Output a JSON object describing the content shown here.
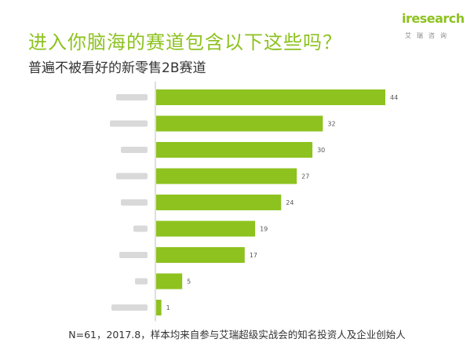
{
  "header": {
    "title": "进入你脑海的赛道包含以下这些吗？",
    "subtitle": "普遍不被看好的新零售2B赛道"
  },
  "logo": {
    "word": "iresearch",
    "sub": "艾瑞咨询",
    "accent_color": "#8dc21f"
  },
  "chart_data": {
    "type": "bar",
    "orientation": "horizontal",
    "categories": [
      "",
      "",
      "",
      "",
      "",
      "",
      "",
      "",
      ""
    ],
    "values": [
      44,
      32,
      30,
      27,
      24,
      19,
      17,
      5,
      1
    ],
    "data_labels": [
      "44",
      "32",
      "30",
      "27",
      "24",
      "19",
      "17",
      "5",
      "1"
    ],
    "title": "",
    "xlabel": "",
    "ylabel": "",
    "xlim": [
      0,
      44
    ],
    "grid": false,
    "legend": "none",
    "bar_color": "#8dc21f",
    "note": "category labels are blurred in the original"
  },
  "footnote": "N=61，2017.8，样本均来自参与艾瑞超级实战会的知名投资人及企业创始人"
}
